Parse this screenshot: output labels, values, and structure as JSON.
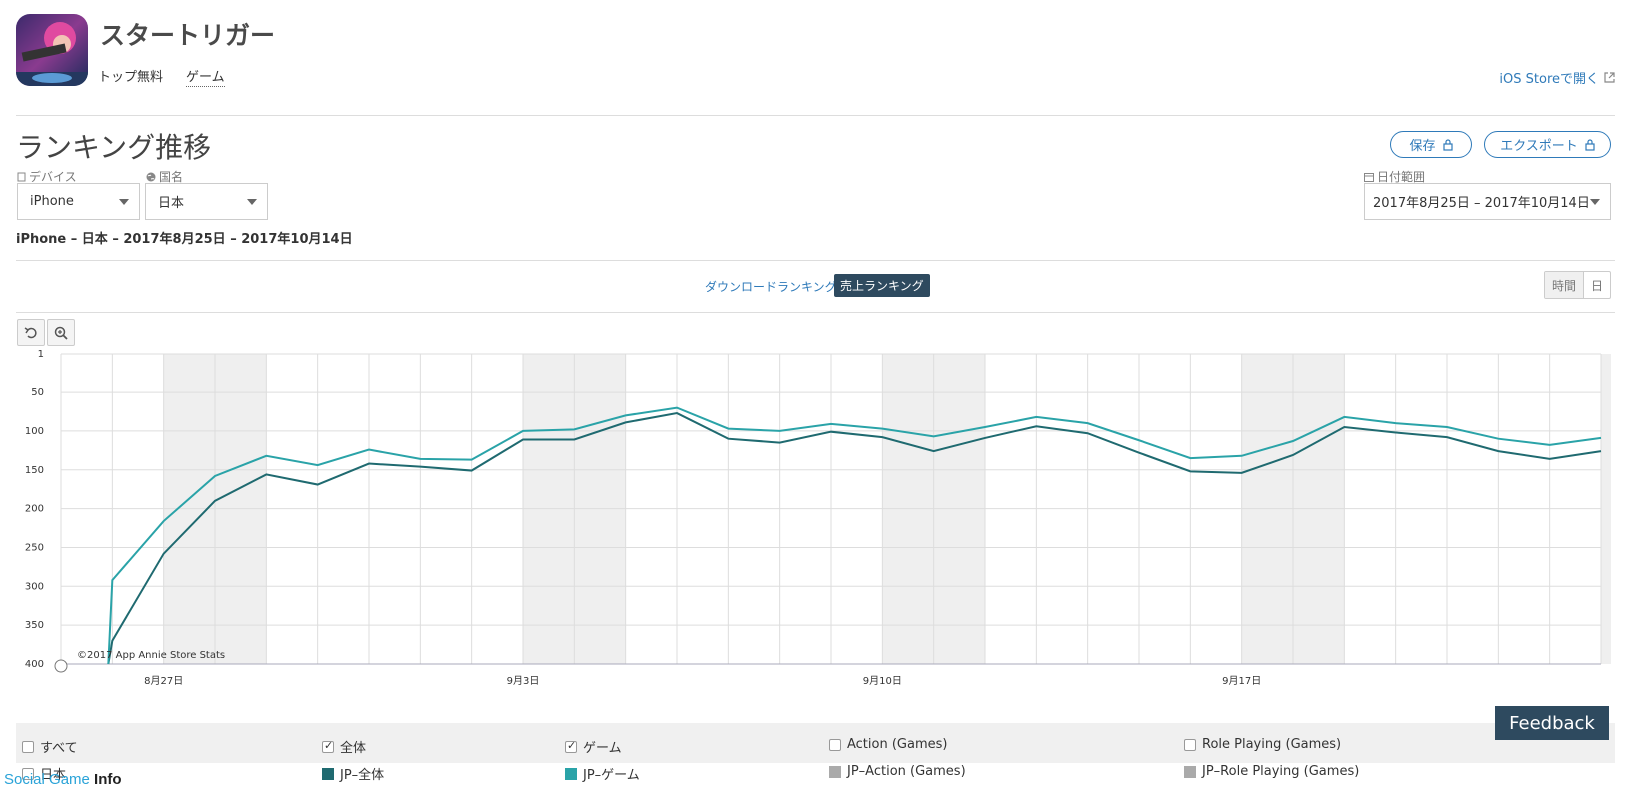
{
  "app": {
    "name": "スタートリガー",
    "crumb_rank": "トップ無料",
    "crumb_category": "ゲーム",
    "store_link": "iOS Storeで開く"
  },
  "section": {
    "title": "ランキング推移",
    "save_label": "保存",
    "export_label": "エクスポート"
  },
  "filters": {
    "device_label": "デバイス",
    "device_value": "iPhone",
    "country_label": "国名",
    "country_value": "日本",
    "date_label": "日付範囲",
    "date_value": "2017年8月25日 – 2017年10月14日"
  },
  "summary": "iPhone – 日本 – 2017年8月25日 – 2017年10月14日",
  "tabs": {
    "download": "ダウンロードランキング",
    "revenue": "売上ランキング"
  },
  "granularity": {
    "hour": "時間",
    "day": "日"
  },
  "chart_data": {
    "type": "line",
    "y_axis": {
      "ticks": [
        1,
        50,
        100,
        150,
        200,
        250,
        300,
        350,
        400
      ],
      "range": [
        1,
        400
      ],
      "inverted": true
    },
    "x_axis": {
      "start_date": "8月26日",
      "tick_labels": [
        {
          "label": "8月27日",
          "index": 1
        },
        {
          "label": "9月3日",
          "index": 8
        },
        {
          "label": "9月10日",
          "index": 15
        },
        {
          "label": "9月17日",
          "index": 22
        }
      ],
      "weekend_bands": [
        [
          1,
          3
        ],
        [
          8,
          10
        ],
        [
          15,
          17
        ],
        [
          22,
          24
        ],
        [
          29,
          30
        ]
      ]
    },
    "grid": true,
    "credit": "©2017 App Annie Store Stats",
    "series": [
      {
        "name": "JP-全体",
        "color": "#1f6a70",
        "values": [
          370,
          258,
          190,
          156,
          169,
          142,
          146,
          151,
          111,
          111,
          89,
          77,
          110,
          115,
          101,
          108,
          126,
          109,
          94,
          103,
          128,
          152,
          154,
          131,
          95,
          102,
          108,
          126,
          136,
          126
        ]
      },
      {
        "name": "JP-ゲーム",
        "color": "#2aa3a8",
        "values": [
          292,
          216,
          158,
          132,
          144,
          124,
          136,
          137,
          100,
          98,
          80,
          70,
          97,
          100,
          91,
          97,
          107,
          95,
          82,
          90,
          112,
          135,
          132,
          113,
          82,
          90,
          95,
          110,
          118,
          109
        ]
      }
    ]
  },
  "legend": {
    "all": "すべて",
    "overall": "全体",
    "game": "ゲーム",
    "action": "Action (Games)",
    "rpg": "Role Playing (Games)",
    "country": "日本",
    "s_overall": "JP–全体",
    "s_game": "JP–ゲーム",
    "s_action": "JP–Action (Games)",
    "s_rpg": "JP–Role Playing (Games)",
    "color_overall": "#1f6a70",
    "color_game": "#2aa3a8",
    "color_inactive": "#aaaaaa"
  },
  "feedback": "Feedback",
  "watermark": {
    "part1": "Social Game",
    "part2": " Info"
  }
}
